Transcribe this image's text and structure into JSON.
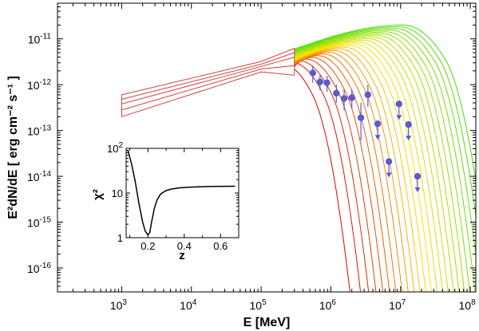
{
  "chart_data": [
    {
      "type": "line",
      "panel": "main",
      "xlabel": "E [MeV]",
      "ylabel": "E²dN/dE [ erg cm⁻² s⁻¹ ]",
      "xscale": "log",
      "yscale": "log",
      "xlim": [
        120,
        120000000
      ],
      "ylim": [
        3e-17,
        6e-11
      ],
      "x_ticks": [
        {
          "value": 1000,
          "label": "10",
          "exp": "3"
        },
        {
          "value": 10000,
          "label": "10",
          "exp": "4"
        },
        {
          "value": 100000,
          "label": "10",
          "exp": "5"
        },
        {
          "value": 1000000,
          "label": "10",
          "exp": "6"
        },
        {
          "value": 10000000,
          "label": "10",
          "exp": "7"
        },
        {
          "value": 100000000,
          "label": "10",
          "exp": "8"
        }
      ],
      "y_ticks": [
        {
          "value": 1e-16,
          "label": "10",
          "exp": "-16"
        },
        {
          "value": 1e-15,
          "label": "10",
          "exp": "-15"
        },
        {
          "value": 1e-14,
          "label": "10",
          "exp": "-14"
        },
        {
          "value": 1e-13,
          "label": "10",
          "exp": "-13"
        },
        {
          "value": 1e-12,
          "label": "10",
          "exp": "-12"
        },
        {
          "value": 1e-11,
          "label": "10",
          "exp": "-11"
        }
      ],
      "grid": false,
      "lat_bowtie": {
        "x_range": [
          1000,
          300000
        ],
        "upper": [
          6e-13,
          6.2e-12
        ],
        "lower": [
          2e-13,
          1.6e-12
        ],
        "pivot": {
          "x": 100000,
          "y": 2.5e-12
        },
        "color": "#d04040"
      },
      "model_family": {
        "description_visible": false,
        "start_x": 300000,
        "color_from": "#dd0000",
        "color_to": "#44dd00",
        "curve_count": 24,
        "peak_y_range": [
          2.8e-12,
          2e-11
        ],
        "peak_x_range": [
          200000,
          11000000
        ]
      },
      "measurements": [
        {
          "x": 550000,
          "y": 1.8e-12,
          "err_low": 1.1e-12,
          "err_high": 2.6e-12,
          "upper_limit": false
        },
        {
          "x": 700000,
          "y": 1.15e-12,
          "err_low": 7.5e-13,
          "err_high": 1.6e-12,
          "upper_limit": false
        },
        {
          "x": 880000,
          "y": 1.1e-12,
          "err_low": 7e-13,
          "err_high": 1.55e-12,
          "upper_limit": false
        },
        {
          "x": 1200000,
          "y": 6.5e-13,
          "err_low": 4e-13,
          "err_high": 1e-12,
          "upper_limit": false
        },
        {
          "x": 1550000,
          "y": 5e-13,
          "err_low": 2.8e-13,
          "err_high": 8e-13,
          "upper_limit": false
        },
        {
          "x": 2000000,
          "y": 5.2e-13,
          "err_low": 3e-13,
          "err_high": 8e-13,
          "upper_limit": false
        },
        {
          "x": 2700000,
          "y": 1.9e-13,
          "err_low": 6e-14,
          "err_high": 4e-13,
          "upper_limit": false
        },
        {
          "x": 3400000,
          "y": 6e-13,
          "err_low": 3.3e-13,
          "err_high": 1e-12,
          "upper_limit": false
        },
        {
          "x": 4700000,
          "y": 1.4e-13,
          "err_low": 6e-14,
          "err_high": 1.4e-13,
          "upper_limit": true
        },
        {
          "x": 6800000,
          "y": 2.1e-14,
          "err_low": 7e-15,
          "err_high": 2.1e-14,
          "upper_limit": true
        },
        {
          "x": 9500000,
          "y": 3.8e-13,
          "err_low": 1.2e-13,
          "err_high": 3.8e-13,
          "upper_limit": true
        },
        {
          "x": 13000000,
          "y": 1.35e-13,
          "err_low": 4e-14,
          "err_high": 1.35e-13,
          "upper_limit": true
        },
        {
          "x": 17500000,
          "y": 1e-14,
          "err_low": 3e-15,
          "err_high": 1e-14,
          "upper_limit": true
        }
      ],
      "marker_color": "#5b5bcf"
    },
    {
      "type": "line",
      "panel": "inset",
      "xlabel": "z",
      "ylabel": "χ²",
      "xscale": "linear",
      "yscale": "log",
      "xlim": [
        0.08,
        0.7
      ],
      "ylim": [
        1,
        100
      ],
      "x_ticks": [
        {
          "value": 0.2,
          "label": "0.2"
        },
        {
          "value": 0.4,
          "label": "0.4"
        },
        {
          "value": 0.6,
          "label": "0.6"
        }
      ],
      "y_ticks": [
        {
          "value": 1,
          "label": "1",
          "exp": ""
        },
        {
          "value": 10,
          "label": "10",
          "exp": ""
        },
        {
          "value": 100,
          "label": "10",
          "exp": "2"
        }
      ],
      "series": [
        {
          "x": [
            0.09,
            0.11,
            0.13,
            0.15,
            0.17,
            0.185,
            0.2,
            0.21,
            0.22,
            0.235,
            0.25,
            0.27,
            0.3,
            0.33,
            0.37,
            0.42,
            0.48,
            0.55,
            0.62,
            0.68
          ],
          "y": [
            90,
            45,
            18,
            6,
            2.3,
            1.4,
            1.15,
            1.3,
            2.2,
            4.5,
            7,
            9.5,
            11.3,
            12.3,
            13,
            13.5,
            13.8,
            14,
            14.1,
            14.2
          ]
        }
      ]
    }
  ]
}
